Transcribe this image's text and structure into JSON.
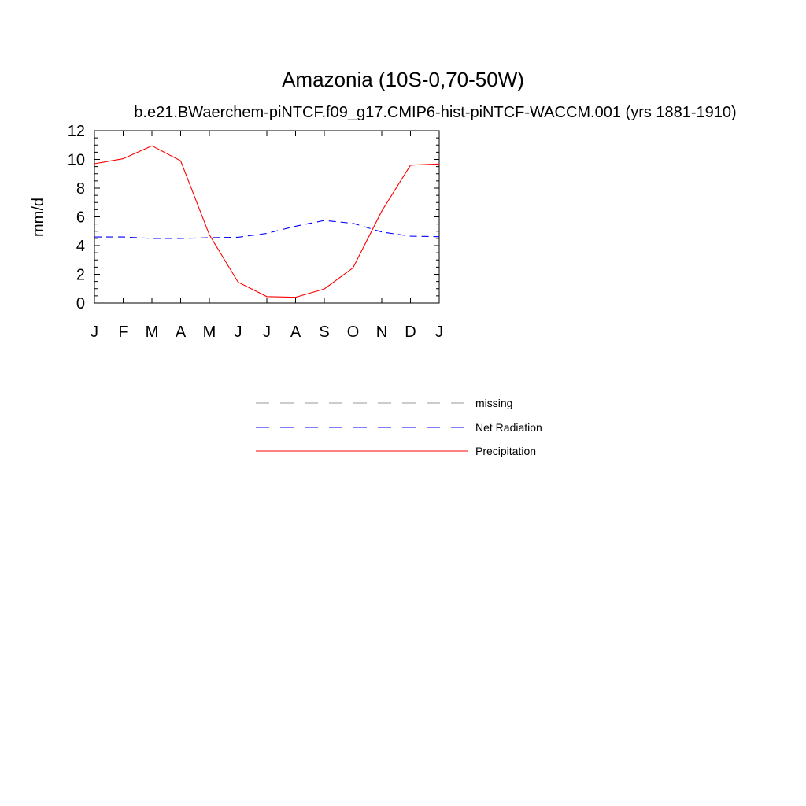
{
  "chart_data": {
    "type": "line",
    "title": "Amazonia (10S-0,70-50W)",
    "subtitle": "b.e21.BWaerchem-piNTCF.f09_g17.CMIP6-hist-piNTCF-WACCM.001 (yrs 1881-1910)",
    "xlabel": "",
    "ylabel": "mm/d",
    "ylim": [
      0,
      12
    ],
    "yticks": [
      "0",
      "2",
      "4",
      "6",
      "8",
      "10",
      "12"
    ],
    "categories": [
      "J",
      "F",
      "M",
      "A",
      "M",
      "J",
      "J",
      "A",
      "S",
      "O",
      "N",
      "D",
      "J"
    ],
    "grid": false,
    "legend_position": "below",
    "series": [
      {
        "name": "Net Radiation",
        "color": "#0000ff",
        "dash": "dashed",
        "values": [
          4.6,
          4.6,
          4.5,
          4.5,
          4.55,
          4.58,
          4.85,
          5.35,
          5.75,
          5.55,
          4.95,
          4.65,
          4.62
        ]
      },
      {
        "name": "Precipitation",
        "color": "#ff0000",
        "dash": "solid",
        "values": [
          9.7,
          10.05,
          10.95,
          9.9,
          4.75,
          1.45,
          0.45,
          0.4,
          0.98,
          2.45,
          6.4,
          9.6,
          9.68
        ]
      }
    ],
    "legend": [
      {
        "label": "missing",
        "color": "#999999",
        "dash": "dashed"
      },
      {
        "label": "Net Radiation",
        "color": "#0000ff",
        "dash": "dashed"
      },
      {
        "label": "Precipitation",
        "color": "#ff0000",
        "dash": "solid"
      }
    ]
  }
}
